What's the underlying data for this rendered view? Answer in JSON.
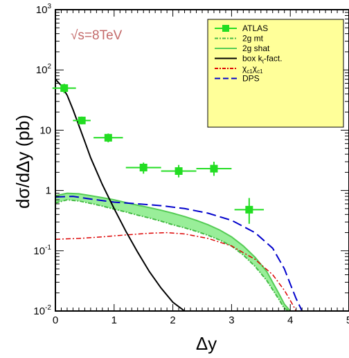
{
  "chart_data": {
    "type": "line",
    "energy_label": "√s=8TeV",
    "xlabel": "Δy",
    "ylabel": "dσ/dΔy (pb)",
    "xlim": [
      0,
      5
    ],
    "ylim": [
      0.01,
      1000
    ],
    "yscale": "log",
    "x_ticks": [
      "0",
      "1",
      "2",
      "3",
      "4",
      "5"
    ],
    "y_ticks": [
      {
        "value": 0.01,
        "base": "10",
        "exp": "-2"
      },
      {
        "value": 0.1,
        "base": "10",
        "exp": "-1"
      },
      {
        "value": 1,
        "base": "1",
        "exp": ""
      },
      {
        "value": 10,
        "base": "10",
        "exp": ""
      },
      {
        "value": 100,
        "base": "10",
        "exp": "2"
      },
      {
        "value": 1000,
        "base": "10",
        "exp": "3"
      }
    ],
    "legend_position": "top-right",
    "legend": [
      {
        "label": "ATLAS",
        "color": "#22dd22",
        "style": "marker"
      },
      {
        "label": "2g mt",
        "color": "#44bb44",
        "style": "dashdot"
      },
      {
        "label": "2g shat",
        "color": "#55cc55",
        "style": "solid"
      },
      {
        "label": "box k",
        "sub": "t",
        "suffix": "-fact.",
        "color": "#000000",
        "style": "solid"
      },
      {
        "label": "χ",
        "sub": "c1",
        "label2": "χ",
        "sub2": "c1",
        "color": "#dd0000",
        "style": "dashdot"
      },
      {
        "label": "DPS",
        "color": "#0000cc",
        "style": "dashed"
      }
    ],
    "atlas": [
      {
        "x": 0.15,
        "y": 50,
        "xerr": 0.2,
        "ylo": 41,
        "yhi": 59
      },
      {
        "x": 0.45,
        "y": 14.5,
        "xerr": 0.15,
        "ylo": 12.5,
        "yhi": 16.8
      },
      {
        "x": 0.9,
        "y": 7.5,
        "xerr": 0.25,
        "ylo": 6.3,
        "yhi": 8.8
      },
      {
        "x": 1.5,
        "y": 2.4,
        "xerr": 0.3,
        "ylo": 1.9,
        "yhi": 2.9
      },
      {
        "x": 2.1,
        "y": 2.1,
        "xerr": 0.3,
        "ylo": 1.65,
        "yhi": 2.65
      },
      {
        "x": 2.7,
        "y": 2.3,
        "xerr": 0.3,
        "ylo": 1.75,
        "yhi": 3.0
      },
      {
        "x": 3.3,
        "y": 0.48,
        "xerr": 0.25,
        "ylo": 0.28,
        "yhi": 0.75
      }
    ],
    "band_2g": {
      "x": [
        0.0,
        0.2,
        0.4,
        0.6,
        0.8,
        1.0,
        1.2,
        1.4,
        1.6,
        1.8,
        2.0,
        2.2,
        2.4,
        2.6,
        2.8,
        3.0,
        3.2,
        3.4,
        3.6,
        3.8,
        3.9,
        4.0
      ],
      "upper": [
        0.82,
        0.9,
        0.88,
        0.82,
        0.76,
        0.7,
        0.63,
        0.57,
        0.52,
        0.47,
        0.42,
        0.37,
        0.32,
        0.27,
        0.22,
        0.17,
        0.12,
        0.078,
        0.045,
        0.02,
        0.013,
        0.01
      ],
      "lower": [
        0.62,
        0.7,
        0.67,
        0.61,
        0.55,
        0.49,
        0.44,
        0.39,
        0.35,
        0.31,
        0.27,
        0.24,
        0.21,
        0.18,
        0.15,
        0.12,
        0.085,
        0.055,
        0.032,
        0.016,
        0.011,
        0.01
      ]
    },
    "box_kt": {
      "x": [
        0.0,
        0.1,
        0.2,
        0.3,
        0.4,
        0.5,
        0.6,
        0.8,
        1.0,
        1.2,
        1.4,
        1.6,
        1.8,
        2.0,
        2.2
      ],
      "y": [
        70,
        55,
        38,
        22,
        12,
        6.5,
        3.5,
        1.25,
        0.5,
        0.21,
        0.095,
        0.045,
        0.024,
        0.014,
        0.01
      ]
    },
    "chic": {
      "x": [
        0.0,
        0.4,
        0.8,
        1.2,
        1.6,
        1.9,
        2.2,
        2.6,
        3.0,
        3.4,
        3.7,
        3.9,
        4.0,
        4.1
      ],
      "y": [
        0.155,
        0.16,
        0.17,
        0.183,
        0.195,
        0.2,
        0.19,
        0.16,
        0.12,
        0.072,
        0.04,
        0.022,
        0.015,
        0.01
      ]
    },
    "dps": {
      "x": [
        0.0,
        0.3,
        0.6,
        1.0,
        1.4,
        1.8,
        2.2,
        2.6,
        3.0,
        3.4,
        3.7,
        3.9,
        4.0,
        4.1,
        4.2
      ],
      "y": [
        0.78,
        0.8,
        0.72,
        0.64,
        0.6,
        0.56,
        0.5,
        0.42,
        0.32,
        0.2,
        0.11,
        0.05,
        0.028,
        0.016,
        0.01
      ]
    },
    "colors": {
      "atlas": "#22dd22",
      "band_fill": "#99ee99",
      "band_edge": "#55cc55",
      "mt_line": "#44bb44",
      "box": "#000000",
      "chic": "#dd0000",
      "dps": "#0000cc",
      "legend_bg": "#ffff99"
    }
  }
}
